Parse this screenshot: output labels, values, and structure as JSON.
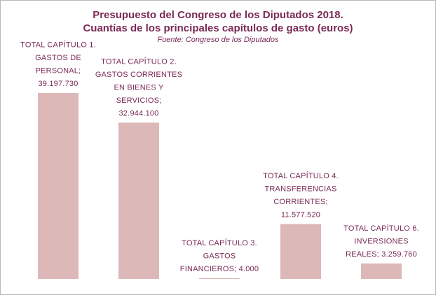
{
  "title_line1": "Presupuesto del Congreso de los Diputados 2018.",
  "title_line2": "Cuantías de los principales capítulos de gasto (euros)",
  "subtitle": "Fuente:  Congreso de los Diputados",
  "colors": {
    "bar": "#dcb8b8",
    "text": "#7b2a55",
    "border": "#b8b8b8"
  },
  "chart_data": {
    "type": "bar",
    "title": "Presupuesto del Congreso de los Diputados 2018. Cuantías de los principales capítulos de gasto (euros)",
    "subtitle": "Fuente:  Congreso de los Diputados",
    "categories": [
      "TOTAL CAPÍTULO 1. GASTOS DE PERSONAL",
      "TOTAL CAPÍTULO 2. GASTOS CORRIENTES EN BIENES Y SERVICIOS",
      "TOTAL CAPÍTULO 3. GASTOS FINANCIEROS",
      "TOTAL CAPÍTULO 4. TRANSFERENCIAS CORRIENTES",
      "TOTAL CAPÍTULO 6. INVERSIONES REALES"
    ],
    "values": [
      39197730,
      32944100,
      4000,
      11577520,
      3259760
    ],
    "value_labels": [
      "39.197.730",
      "32.944.100",
      "4.000",
      "11.577.520",
      "3.259.760"
    ],
    "data_labels": [
      [
        "TOTAL CAPÍTULO 1.",
        "GASTOS DE",
        "PERSONAL;",
        "39.197.730"
      ],
      [
        "TOTAL CAPÍTULO 2.",
        "GASTOS CORRIENTES",
        "EN BIENES Y",
        "SERVICIOS;",
        "32.944.100"
      ],
      [
        "TOTAL CAPÍTULO 3.",
        "GASTOS",
        "FINANCIEROS;  4.000"
      ],
      [
        "TOTAL CAPÍTULO 4.",
        "TRANSFERENCIAS",
        "CORRIENTES;",
        "11.577.520"
      ],
      [
        "TOTAL CAPÍTULO 6.",
        "INVERSIONES",
        "REALES;  3.259.760"
      ]
    ],
    "xlabel": "",
    "ylabel": "",
    "ylim": [
      0,
      39197730
    ],
    "grid": false,
    "legend": "none"
  }
}
